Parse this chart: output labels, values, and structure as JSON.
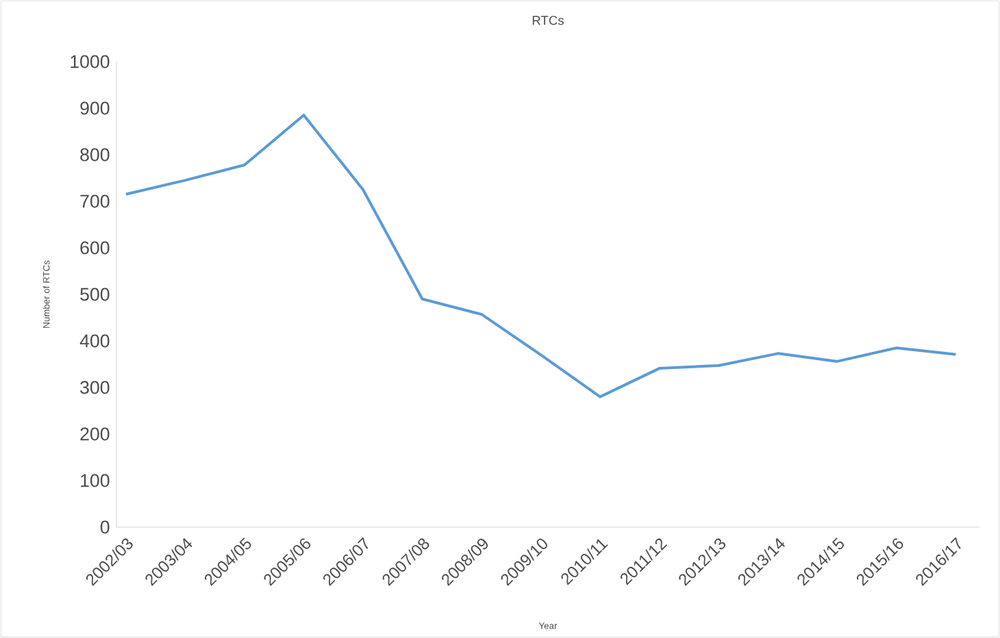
{
  "chart_data": {
    "type": "line",
    "title": "RTCs",
    "xlabel": "Year",
    "ylabel": "Number of RTCs",
    "categories": [
      "2002/03",
      "2003/04",
      "2004/05",
      "2005/06",
      "2006/07",
      "2007/08",
      "2008/09",
      "2009/10",
      "2010/11",
      "2011/12",
      "2012/13",
      "2013/14",
      "2014/15",
      "2015/16",
      "2016/17"
    ],
    "values": [
      715,
      745,
      778,
      885,
      725,
      490,
      457,
      370,
      280,
      341,
      347,
      373,
      356,
      385,
      371
    ],
    "color": "#5b9bd5",
    "ylim": [
      0,
      1000
    ],
    "yticks": [
      0,
      100,
      200,
      300,
      400,
      500,
      600,
      700,
      800,
      900,
      1000
    ]
  }
}
